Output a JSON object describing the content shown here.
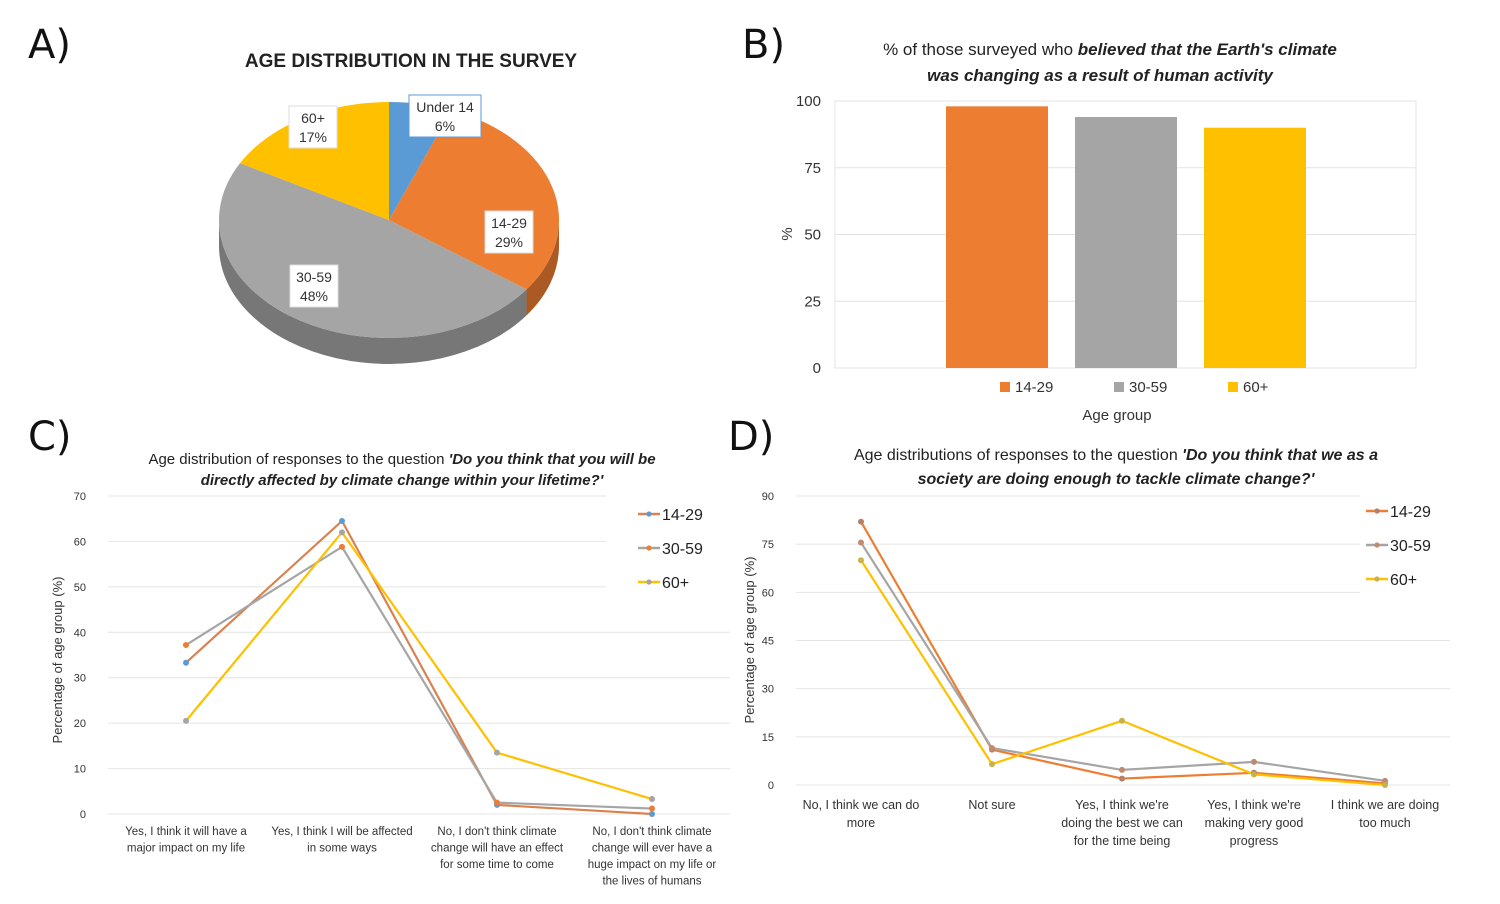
{
  "panels": [
    "A)",
    "B)",
    "C)",
    "D)"
  ],
  "chart_data": [
    {
      "type": "pie",
      "title": "AGE DISTRIBUTION IN THE SURVEY",
      "slices": [
        {
          "label": "Under 14",
          "value": 6,
          "text": "6%",
          "color": "#5b9bd5"
        },
        {
          "label": "14-29",
          "value": 29,
          "text": "29%",
          "color": "#ed7d31"
        },
        {
          "label": "30-59",
          "value": 48,
          "text": "48%",
          "color": "#a5a5a5"
        },
        {
          "label": "60+",
          "value": 17,
          "text": "17%",
          "color": "#ffc000"
        }
      ]
    },
    {
      "type": "bar",
      "title_plain": "% of those surveyed who ",
      "title_bold_1": "believed that the Earth's climate",
      "title_bold_2": "was changing as a result of human activity",
      "categories": [
        "14-29",
        "30-59",
        "60+"
      ],
      "values": [
        98,
        94,
        90
      ],
      "colors": [
        "#ed7d31",
        "#a5a5a5",
        "#ffc000"
      ],
      "xlabel": "Age group",
      "ylabel": "%",
      "ylim": [
        0,
        100
      ],
      "yticks": [
        0,
        25,
        50,
        75,
        100
      ],
      "legend": "bottom",
      "grid": true
    },
    {
      "type": "line",
      "title_plain": "Age distribution of responses to the question ",
      "title_bold_1": "'Do you think that you will be",
      "title_bold_2": "directly affected by climate change within your lifetime?'",
      "ylabel": "Percentage of age group (%)",
      "ylim": [
        0,
        70
      ],
      "yticks": [
        0,
        10,
        20,
        30,
        40,
        50,
        60,
        70
      ],
      "categories": [
        [
          "Yes, I think it will have a",
          "major impact on my life"
        ],
        [
          "Yes, I think I will be affected",
          "in some ways"
        ],
        [
          "No, I don't think climate",
          "change will have an effect",
          "for some time to come"
        ],
        [
          "No, I don't think climate",
          "change will ever have a",
          "huge impact on my life or",
          "the lives of humans"
        ]
      ],
      "series": [
        {
          "name": "14-29",
          "values": [
            33.3,
            64.5,
            2,
            0
          ],
          "line": "#d9824f",
          "marker": "#5b9bd5"
        },
        {
          "name": "30-59",
          "values": [
            37.2,
            58.8,
            2.5,
            1.2
          ],
          "line": "#a5a5a5",
          "marker": "#ed7d31"
        },
        {
          "name": "60+",
          "values": [
            20.5,
            62,
            13.5,
            3.3
          ],
          "line": "#ffc000",
          "marker": "#a5a5a5"
        }
      ],
      "legend": "top-right",
      "grid": true
    },
    {
      "type": "line",
      "title_plain": "Age distributions of responses to the question ",
      "title_bold_1": "'Do you think that we as a",
      "title_bold_2": "society are doing enough to tackle climate change?'",
      "ylabel": "Percentage of age group (%)",
      "ylim": [
        0,
        90
      ],
      "yticks": [
        0,
        15,
        30,
        45,
        60,
        75,
        90
      ],
      "categories": [
        [
          "No, I think we can do",
          "more"
        ],
        [
          "Not sure"
        ],
        [
          "Yes, I think we're",
          "doing the best we can",
          "for the time being"
        ],
        [
          "Yes, I think we're",
          "making very good",
          "progress"
        ],
        [
          "I think we are doing",
          "too much"
        ]
      ],
      "series": [
        {
          "name": "14-29",
          "values": [
            82,
            11,
            2,
            3.8,
            0.5
          ],
          "line": "#ed7d31",
          "marker": "#b4806a"
        },
        {
          "name": "30-59",
          "values": [
            75.5,
            11.5,
            4.7,
            7.2,
            1.3
          ],
          "line": "#a5a5a5",
          "marker": "#c08a6e"
        },
        {
          "name": "60+",
          "values": [
            70,
            6.5,
            20,
            3.3,
            0
          ],
          "line": "#ffc000",
          "marker": "#c9b24a"
        }
      ],
      "legend": "top-right",
      "grid": true
    }
  ]
}
